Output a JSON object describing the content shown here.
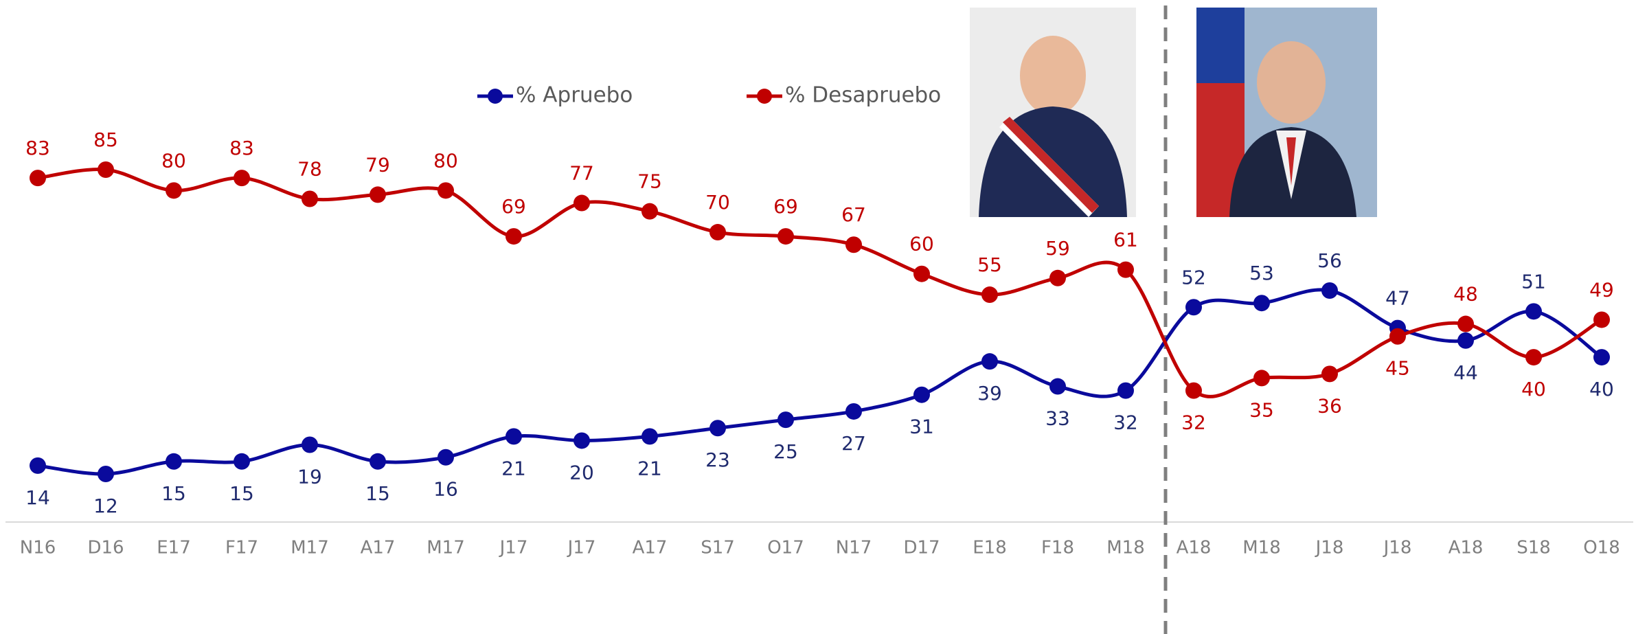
{
  "chart_data": {
    "type": "line",
    "categories": [
      "N16",
      "D16",
      "E17",
      "F17",
      "M17",
      "A17",
      "M17",
      "J17",
      "J17",
      "A17",
      "S17",
      "O17",
      "N17",
      "D17",
      "E18",
      "F18",
      "M18",
      "A18",
      "M18",
      "J18",
      "J18",
      "A18",
      "S18",
      "O18"
    ],
    "series": [
      {
        "name": "% Apruebo",
        "color": "#0a0a9c",
        "label_color": "#1f2a6e",
        "values": [
          14,
          12,
          15,
          15,
          19,
          15,
          16,
          21,
          20,
          21,
          23,
          25,
          27,
          31,
          39,
          33,
          32,
          52,
          53,
          56,
          47,
          44,
          51,
          40
        ]
      },
      {
        "name": "% Desapruebo",
        "color": "#c00000",
        "label_color": "#c00000",
        "values": [
          83,
          85,
          80,
          83,
          78,
          79,
          80,
          69,
          77,
          75,
          70,
          69,
          67,
          60,
          55,
          59,
          61,
          32,
          35,
          36,
          45,
          48,
          40,
          49
        ]
      }
    ]
  }
}
